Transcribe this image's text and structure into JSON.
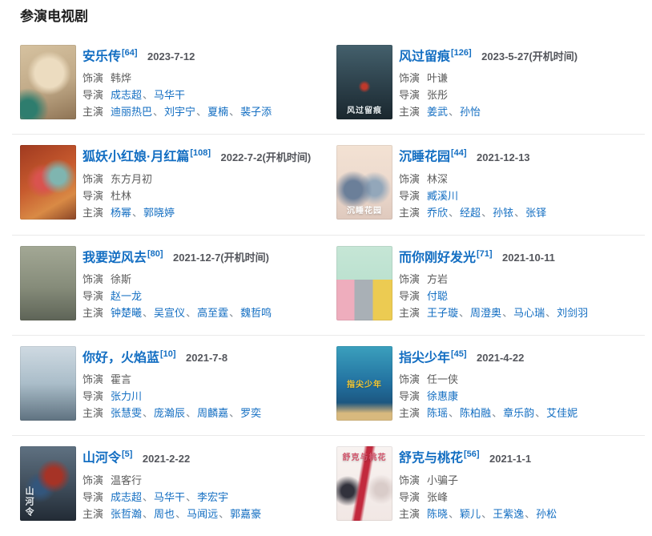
{
  "section": {
    "title": "参演电视剧"
  },
  "labels": {
    "role": "饰演",
    "director": "导演",
    "starring": "主演",
    "separator": "、"
  },
  "colors": {
    "link_blue": "#136ec2",
    "text_gray": "#5c5c5c",
    "date_gray": "#54565c",
    "divider": "#eaeaea"
  },
  "items": [
    {
      "title": "安乐传",
      "ref": "[64]",
      "date": "2023-7-12",
      "role": "韩烨",
      "directors": [
        {
          "name": "成志超",
          "link": true
        },
        {
          "name": "马华干",
          "link": true
        }
      ],
      "starring": [
        {
          "name": "迪丽热巴",
          "link": true
        },
        {
          "name": "刘宇宁",
          "link": true
        },
        {
          "name": "夏楠",
          "link": true
        },
        {
          "name": "裴子添",
          "link": true
        }
      ],
      "poster": {
        "bg": "radial-gradient(circle at 14% 86%, #2e7d6e 0 11%, rgba(46,125,110,0) 26%), radial-gradient(circle at 52% 38%, #ecdcc0 0 26%, rgba(236,220,192,0) 40%), linear-gradient(160deg, #d6c2a0 0%, #c0a987 55%, #8e7354 100%)",
        "caption": null
      }
    },
    {
      "title": "风过留痕",
      "ref": "[126]",
      "date": "2023-5-27(开机时间)",
      "role": "叶谦",
      "directors": [
        {
          "name": "张彤",
          "link": false
        }
      ],
      "starring": [
        {
          "name": "姜武",
          "link": true
        },
        {
          "name": "孙怡",
          "link": true
        }
      ],
      "poster": {
        "bg": "radial-gradient(circle at 50% 56%, #c0392b 0 5%, rgba(192,57,43,0) 12%), linear-gradient(180deg, #44606c 0%, #2a3d47 60%, #1a272e 100%)",
        "caption": {
          "text": "风过留痕",
          "color": "#e8eef0",
          "pos": "bottom"
        }
      }
    },
    {
      "title": "狐妖小红娘·月红篇",
      "ref": "[108]",
      "date": "2022-7-2(开机时间)",
      "role": "东方月初",
      "directors": [
        {
          "name": "杜林",
          "link": false
        }
      ],
      "starring": [
        {
          "name": "杨幂",
          "link": true
        },
        {
          "name": "郭晓婷",
          "link": true
        }
      ],
      "poster": {
        "bg": "radial-gradient(circle at 68% 42%, #7fb5b0 0 13%, rgba(127,181,176,0) 30%), radial-gradient(circle at 42% 48%, #d9534f 0 16%, rgba(217,83,79,0) 34%), linear-gradient(150deg, #a03a20 0%, #c75a2e 45%, #d98a45 75%, #8a4526 100%)",
        "caption": null
      }
    },
    {
      "title": "沉睡花园",
      "ref": "[44]",
      "date": "2021-12-13",
      "role": "林深",
      "directors": [
        {
          "name": "臧溪川",
          "link": true
        }
      ],
      "starring": [
        {
          "name": "乔欣",
          "link": true
        },
        {
          "name": "经超",
          "link": true
        },
        {
          "name": "孙铱",
          "link": true
        },
        {
          "name": "张铎",
          "link": true
        }
      ],
      "poster": {
        "bg": "radial-gradient(circle at 30% 60%, #6b7f99 0 15%, rgba(107,127,153,0) 32%), radial-gradient(circle at 68% 58%, #93a7ba 0 13%, rgba(147,167,186,0) 29%), linear-gradient(180deg, #f3e2d3 0%, #ecd9cd 55%, #dfc9bd 100%)",
        "caption": {
          "text": "沉睡花园",
          "color": "#ffffff",
          "pos": "bottom"
        }
      }
    },
    {
      "title": "我要逆风去",
      "ref": "[80]",
      "date": "2021-12-7(开机时间)",
      "role": "徐斯",
      "directors": [
        {
          "name": "赵一龙",
          "link": true
        }
      ],
      "starring": [
        {
          "name": "钟楚曦",
          "link": true
        },
        {
          "name": "吴宣仪",
          "link": true
        },
        {
          "name": "高至霆",
          "link": true
        },
        {
          "name": "魏哲鸣",
          "link": true
        }
      ],
      "poster": {
        "bg": "linear-gradient(180deg, #a3a895 0%, #868c7a 55%, #5e6457 100%)",
        "caption": null
      }
    },
    {
      "title": "而你刚好发光",
      "ref": "[71]",
      "date": "2021-10-11",
      "role": "方岩",
      "directors": [
        {
          "name": "付聪",
          "link": true
        }
      ],
      "starring": [
        {
          "name": "王子璇",
          "link": true
        },
        {
          "name": "周澄奥",
          "link": true
        },
        {
          "name": "马心瑞",
          "link": true
        },
        {
          "name": "刘剑羽",
          "link": true
        }
      ],
      "poster": {
        "bg": "linear-gradient(90deg, #eeadbd 0 32%, #a9b0b6 32% 65%, #eccb52 65% 100%) left bottom/100% 55% no-repeat, linear-gradient(180deg, #c6e6d6 0%, #b0dcc8 100%)",
        "caption": null
      }
    },
    {
      "title": "你好，火焰蓝",
      "ref": "[10]",
      "date": "2021-7-8",
      "role": "霍言",
      "directors": [
        {
          "name": "张力川",
          "link": true
        }
      ],
      "starring": [
        {
          "name": "张慧雯",
          "link": true
        },
        {
          "name": "庞瀚辰",
          "link": true
        },
        {
          "name": "周麟嘉",
          "link": true
        },
        {
          "name": "罗奕",
          "link": true
        }
      ],
      "poster": {
        "bg": "linear-gradient(180deg, #cfdae2 0%, #aabdc9 50%, #5f7280 100%)",
        "caption": null
      }
    },
    {
      "title": "指尖少年",
      "ref": "[45]",
      "date": "2021-4-22",
      "role": "任一侠",
      "directors": [
        {
          "name": "徐惠康",
          "link": true
        }
      ],
      "starring": [
        {
          "name": "陈瑶",
          "link": true
        },
        {
          "name": "陈柏融",
          "link": true
        },
        {
          "name": "章乐韵",
          "link": true
        },
        {
          "name": "艾佳妮",
          "link": true
        }
      ],
      "poster": {
        "bg": "linear-gradient(180deg, rgba(216,185,126,0) 76%, #d8b97e 90%), linear-gradient(180deg, #3ba0bd 0%, #2271a0 50%, #173f63 100%)",
        "caption": {
          "text": "指尖少年",
          "color": "#f6c730",
          "pos": "middle"
        }
      }
    },
    {
      "title": "山河令",
      "ref": "[5]",
      "date": "2021-2-22",
      "role": "温客行",
      "directors": [
        {
          "name": "成志超",
          "link": true
        },
        {
          "name": "马华干",
          "link": true
        },
        {
          "name": "李宏宇",
          "link": true
        }
      ],
      "starring": [
        {
          "name": "张哲瀚",
          "link": true
        },
        {
          "name": "周也",
          "link": true
        },
        {
          "name": "马闻远",
          "link": true
        },
        {
          "name": "郭嘉豪",
          "link": true
        }
      ],
      "poster": {
        "bg": "radial-gradient(circle at 60% 40%, #a63326 0 14%, rgba(166,51,38,0) 30%), radial-gradient(circle at 36% 55%, #33567c 0 12%, rgba(51,86,124,0) 28%), linear-gradient(180deg, #5f7181 0%, #3e4c5a 55%, #222b35 100%)",
        "caption": {
          "text": "山河令",
          "color": "#e9eef2",
          "pos": "left"
        }
      }
    },
    {
      "title": "舒克与桃花",
      "ref": "[56]",
      "date": "2021-1-1",
      "role": "小骗子",
      "directors": [
        {
          "name": "张峰",
          "link": false
        }
      ],
      "starring": [
        {
          "name": "陈晓",
          "link": true
        },
        {
          "name": "颖儿",
          "link": true
        },
        {
          "name": "王紫逸",
          "link": true
        },
        {
          "name": "孙松",
          "link": true
        }
      ],
      "poster": {
        "bg": "linear-gradient(100deg, rgba(194,41,61,0) 40%, #c2293d 45% 52%, rgba(194,41,61,0) 57%), radial-gradient(circle at 20% 60%, #32323c 0 10%, rgba(50,50,60,0) 24%), radial-gradient(circle at 80% 58%, #d9ccc9 0 10%, rgba(217,204,201,0) 24%), linear-gradient(180deg, #f8f3f1 0%, #f1e7e4 100%)",
        "caption": {
          "text": "舒克与桃花",
          "color": "#d4566d",
          "pos": "top"
        }
      }
    }
  ]
}
